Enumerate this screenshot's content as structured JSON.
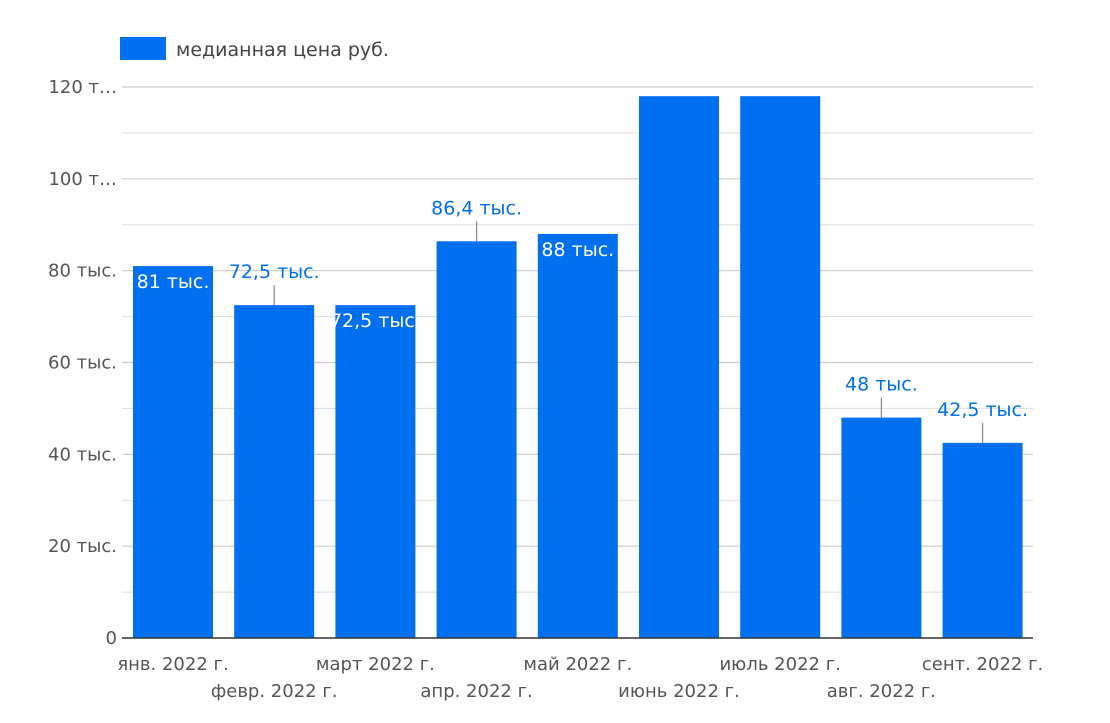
{
  "chart_data": {
    "type": "bar",
    "categories": [
      "янв. 2022 г.",
      "февр. 2022 г.",
      "март 2022 г.",
      "апр. 2022 г.",
      "май 2022 г.",
      "июнь 2022 г.",
      "июль 2022 г.",
      "авг. 2022 г.",
      "сент. 2022 г."
    ],
    "series": [
      {
        "name": "медианная цена руб.",
        "values": [
          81000,
          72500,
          72500,
          86400,
          88000,
          118000,
          118000,
          48000,
          42500
        ],
        "labels": [
          "81 тыс.",
          "72,5 тыс.",
          "72,5 тыс.",
          "86,4 тыс.",
          "88 тыс.",
          "",
          "",
          "48 тыс.",
          "42,5 тыс."
        ]
      }
    ],
    "yticks": [
      {
        "value": 0,
        "label": "0"
      },
      {
        "value": 20000,
        "label": "20 тыс."
      },
      {
        "value": 40000,
        "label": "40 тыс."
      },
      {
        "value": 60000,
        "label": "60 тыс."
      },
      {
        "value": 80000,
        "label": "80 тыс."
      },
      {
        "value": 100000,
        "label": "100 т…"
      },
      {
        "value": 120000,
        "label": "120 т…"
      }
    ],
    "ylim": [
      0,
      120000
    ],
    "title": "",
    "xlabel": "",
    "ylabel": "",
    "grid": true,
    "legend_position": "top-left"
  },
  "colors": {
    "bar": "#0070f0",
    "label_outside": "#0070f0",
    "label_inside": "#ffffff",
    "grid": "#cccccc",
    "axis": "#333333"
  }
}
